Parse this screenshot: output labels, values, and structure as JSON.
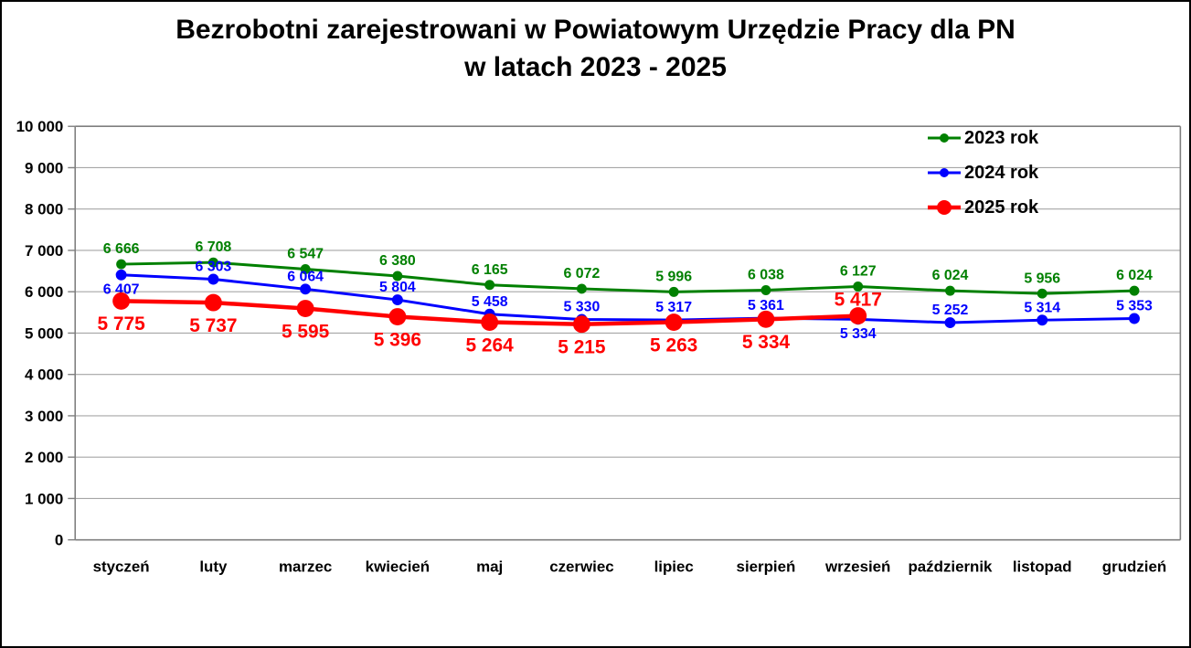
{
  "chart_data": {
    "type": "line",
    "title": "Bezrobotni zarejestrowani w Powiatowym Urzędzie Pracy dla PN w latach 2023 - 2025",
    "title_lines": [
      "Bezrobotni zarejestrowani w Powiatowym Urzędzie Pracy dla PN",
      "w latach 2023 - 2025"
    ],
    "categories": [
      "styczeń",
      "luty",
      "marzec",
      "kwiecień",
      "maj",
      "czerwiec",
      "lipiec",
      "sierpień",
      "wrzesień",
      "październik",
      "listopad",
      "grudzień"
    ],
    "series": [
      {
        "name": "2023 rok",
        "color": "#008000",
        "values": [
          6666,
          6708,
          6547,
          6380,
          6165,
          6072,
          5996,
          6038,
          6127,
          6024,
          5956,
          6024
        ],
        "label_pos": [
          "above",
          "above",
          "above",
          "above",
          "above",
          "above",
          "above",
          "above",
          "above",
          "above",
          "above",
          "above"
        ]
      },
      {
        "name": "2024 rok",
        "color": "#0000ff",
        "values": [
          6407,
          6303,
          6064,
          5804,
          5458,
          5330,
          5317,
          5361,
          5334,
          5252,
          5314,
          5353
        ],
        "label_pos": [
          "below",
          "above",
          "above",
          "above",
          "above",
          "above",
          "above",
          "above",
          "below",
          "above",
          "above",
          "above"
        ]
      },
      {
        "name": "2025 rok",
        "color": "#ff0000",
        "values": [
          5775,
          5737,
          5595,
          5396,
          5264,
          5215,
          5263,
          5334,
          5417,
          null,
          null,
          null
        ],
        "label_pos": [
          "below",
          "below",
          "below",
          "below",
          "below",
          "below",
          "below",
          "below",
          "above",
          null,
          null,
          null
        ]
      }
    ],
    "ylim": [
      0,
      10000
    ],
    "y_tick_step": 1000,
    "y_tick_labels": [
      "0",
      "1 000",
      "2 000",
      "3 000",
      "4 000",
      "5 000",
      "6 000",
      "7 000",
      "8 000",
      "9 000",
      "10 000"
    ],
    "grid": "horizontal",
    "legend_position": "top-right",
    "axis_color": "#7f7f7f",
    "gridline_color": "#a6a6a6"
  }
}
